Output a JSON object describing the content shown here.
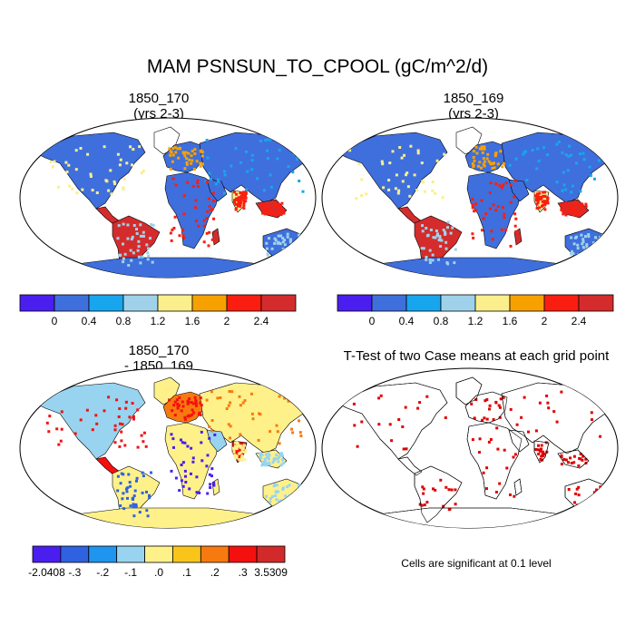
{
  "figure": {
    "title": "MAM PSNSUN_TO_CPOOL (gC/m^2/d)"
  },
  "panels": [
    {
      "id": "case1",
      "title": "1850_170",
      "subtitle": "(yrs 2-3)"
    },
    {
      "id": "case2",
      "title": "1850_169",
      "subtitle": "(yrs 2-3)"
    },
    {
      "id": "diff",
      "title": "1850_170",
      "subtitle": "- 1850_169"
    },
    {
      "id": "ttest",
      "title": "T-Test of two Case means at each grid point",
      "note": "Cells are significant at 0.1 level"
    }
  ],
  "colorbars": {
    "absolute": {
      "colors": [
        "#4b1ef0",
        "#3f6fdc",
        "#17a6ee",
        "#9fd2ea",
        "#fbee8c",
        "#f7a100",
        "#fa1e10",
        "#d42c2c"
      ],
      "labels": [
        "0",
        "0.4",
        "0.8",
        "1.2",
        "1.6",
        "2",
        "2.4"
      ]
    },
    "difference": {
      "colors": [
        "#4b1ef0",
        "#2e62e0",
        "#1f95ef",
        "#98d4f0",
        "#fff18a",
        "#f9c51a",
        "#f77a10",
        "#f51010",
        "#d22a2a"
      ],
      "labels": [
        "-2.0408",
        "-.3",
        "-.2",
        "-.1",
        ".0",
        ".1",
        ".2",
        ".3",
        "3.5309"
      ]
    }
  },
  "legend_colors": {
    "ocean": "#ffffff",
    "significant": "#e00000",
    "coastline": "#000000"
  }
}
